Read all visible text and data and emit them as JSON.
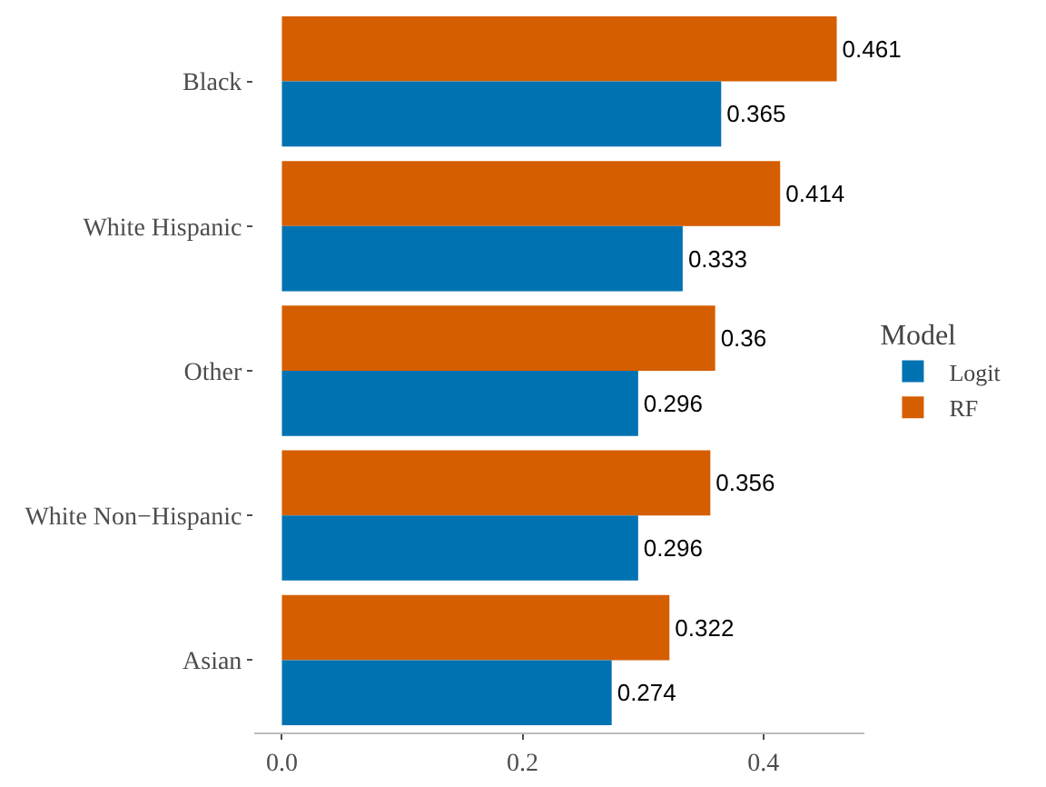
{
  "chart_data": {
    "type": "bar",
    "orientation": "horizontal",
    "legend_title": "Model",
    "legend": "right",
    "grid": false,
    "data_labels": true,
    "categories": [
      "Black",
      "White Hispanic",
      "Other",
      "White Non−Hispanic",
      "Asian"
    ],
    "series": [
      {
        "name": "Logit",
        "color": "#0072b2",
        "values": [
          0.365,
          0.333,
          0.296,
          0.296,
          0.274
        ]
      },
      {
        "name": "RF",
        "color": "#d55e00",
        "values": [
          0.461,
          0.414,
          0.36,
          0.356,
          0.322
        ]
      }
    ],
    "xlim": [
      -0.023,
      0.484
    ],
    "xticks": [
      {
        "value": 0,
        "label": "0.0"
      },
      {
        "value": 0.2,
        "label": "0.2"
      },
      {
        "value": 0.4,
        "label": "0.4"
      }
    ]
  }
}
